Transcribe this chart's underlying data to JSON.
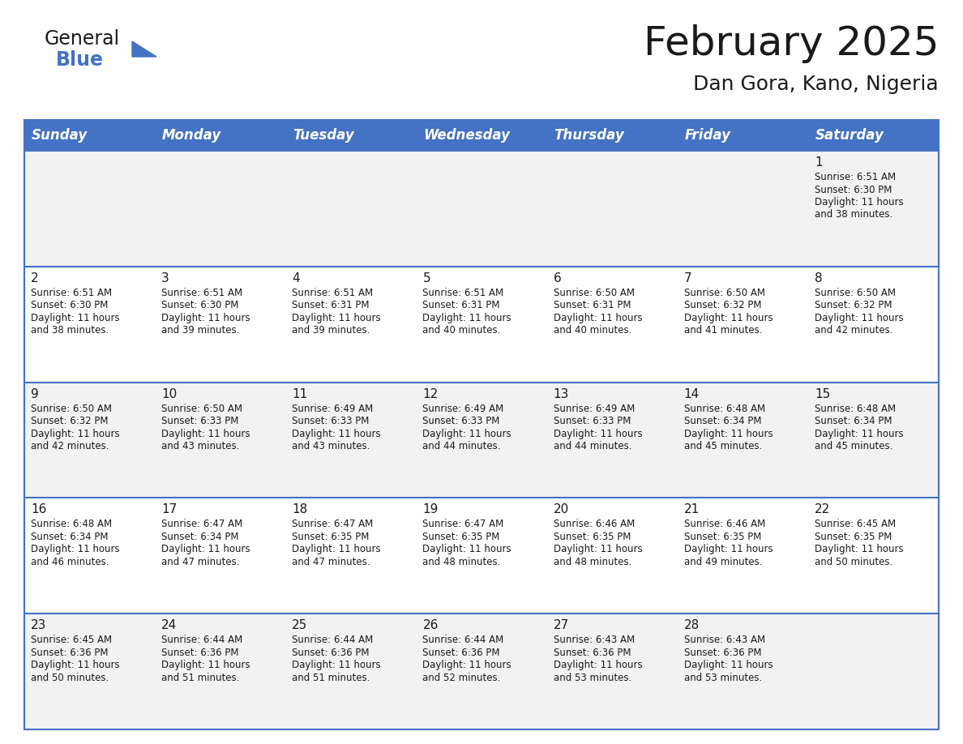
{
  "title": "February 2025",
  "subtitle": "Dan Gora, Kano, Nigeria",
  "header_color": "#4472C4",
  "header_text_color": "#FFFFFF",
  "days_of_week": [
    "Sunday",
    "Monday",
    "Tuesday",
    "Wednesday",
    "Thursday",
    "Friday",
    "Saturday"
  ],
  "background_color": "#FFFFFF",
  "cell_bg_color": "#F2F2F2",
  "cell_bg_color_alt": "#FFFFFF",
  "border_color": "#4472C4",
  "title_fontsize": 36,
  "subtitle_fontsize": 18,
  "day_label_fontsize": 12,
  "date_num_fontsize": 11,
  "cell_text_fontsize": 8.5,
  "calendar_data": [
    [
      null,
      null,
      null,
      null,
      null,
      null,
      {
        "day": 1,
        "sunrise": "6:51 AM",
        "sunset": "6:30 PM",
        "daylight_hours": 11,
        "daylight_minutes": 38
      }
    ],
    [
      {
        "day": 2,
        "sunrise": "6:51 AM",
        "sunset": "6:30 PM",
        "daylight_hours": 11,
        "daylight_minutes": 38
      },
      {
        "day": 3,
        "sunrise": "6:51 AM",
        "sunset": "6:30 PM",
        "daylight_hours": 11,
        "daylight_minutes": 39
      },
      {
        "day": 4,
        "sunrise": "6:51 AM",
        "sunset": "6:31 PM",
        "daylight_hours": 11,
        "daylight_minutes": 39
      },
      {
        "day": 5,
        "sunrise": "6:51 AM",
        "sunset": "6:31 PM",
        "daylight_hours": 11,
        "daylight_minutes": 40
      },
      {
        "day": 6,
        "sunrise": "6:50 AM",
        "sunset": "6:31 PM",
        "daylight_hours": 11,
        "daylight_minutes": 40
      },
      {
        "day": 7,
        "sunrise": "6:50 AM",
        "sunset": "6:32 PM",
        "daylight_hours": 11,
        "daylight_minutes": 41
      },
      {
        "day": 8,
        "sunrise": "6:50 AM",
        "sunset": "6:32 PM",
        "daylight_hours": 11,
        "daylight_minutes": 42
      }
    ],
    [
      {
        "day": 9,
        "sunrise": "6:50 AM",
        "sunset": "6:32 PM",
        "daylight_hours": 11,
        "daylight_minutes": 42
      },
      {
        "day": 10,
        "sunrise": "6:50 AM",
        "sunset": "6:33 PM",
        "daylight_hours": 11,
        "daylight_minutes": 43
      },
      {
        "day": 11,
        "sunrise": "6:49 AM",
        "sunset": "6:33 PM",
        "daylight_hours": 11,
        "daylight_minutes": 43
      },
      {
        "day": 12,
        "sunrise": "6:49 AM",
        "sunset": "6:33 PM",
        "daylight_hours": 11,
        "daylight_minutes": 44
      },
      {
        "day": 13,
        "sunrise": "6:49 AM",
        "sunset": "6:33 PM",
        "daylight_hours": 11,
        "daylight_minutes": 44
      },
      {
        "day": 14,
        "sunrise": "6:48 AM",
        "sunset": "6:34 PM",
        "daylight_hours": 11,
        "daylight_minutes": 45
      },
      {
        "day": 15,
        "sunrise": "6:48 AM",
        "sunset": "6:34 PM",
        "daylight_hours": 11,
        "daylight_minutes": 45
      }
    ],
    [
      {
        "day": 16,
        "sunrise": "6:48 AM",
        "sunset": "6:34 PM",
        "daylight_hours": 11,
        "daylight_minutes": 46
      },
      {
        "day": 17,
        "sunrise": "6:47 AM",
        "sunset": "6:34 PM",
        "daylight_hours": 11,
        "daylight_minutes": 47
      },
      {
        "day": 18,
        "sunrise": "6:47 AM",
        "sunset": "6:35 PM",
        "daylight_hours": 11,
        "daylight_minutes": 47
      },
      {
        "day": 19,
        "sunrise": "6:47 AM",
        "sunset": "6:35 PM",
        "daylight_hours": 11,
        "daylight_minutes": 48
      },
      {
        "day": 20,
        "sunrise": "6:46 AM",
        "sunset": "6:35 PM",
        "daylight_hours": 11,
        "daylight_minutes": 48
      },
      {
        "day": 21,
        "sunrise": "6:46 AM",
        "sunset": "6:35 PM",
        "daylight_hours": 11,
        "daylight_minutes": 49
      },
      {
        "day": 22,
        "sunrise": "6:45 AM",
        "sunset": "6:35 PM",
        "daylight_hours": 11,
        "daylight_minutes": 50
      }
    ],
    [
      {
        "day": 23,
        "sunrise": "6:45 AM",
        "sunset": "6:36 PM",
        "daylight_hours": 11,
        "daylight_minutes": 50
      },
      {
        "day": 24,
        "sunrise": "6:44 AM",
        "sunset": "6:36 PM",
        "daylight_hours": 11,
        "daylight_minutes": 51
      },
      {
        "day": 25,
        "sunrise": "6:44 AM",
        "sunset": "6:36 PM",
        "daylight_hours": 11,
        "daylight_minutes": 51
      },
      {
        "day": 26,
        "sunrise": "6:44 AM",
        "sunset": "6:36 PM",
        "daylight_hours": 11,
        "daylight_minutes": 52
      },
      {
        "day": 27,
        "sunrise": "6:43 AM",
        "sunset": "6:36 PM",
        "daylight_hours": 11,
        "daylight_minutes": 53
      },
      {
        "day": 28,
        "sunrise": "6:43 AM",
        "sunset": "6:36 PM",
        "daylight_hours": 11,
        "daylight_minutes": 53
      },
      null
    ]
  ],
  "logo_text_general": "General",
  "logo_text_blue": "Blue",
  "logo_color_general": "#1a1a1a",
  "logo_color_blue": "#4472C4"
}
